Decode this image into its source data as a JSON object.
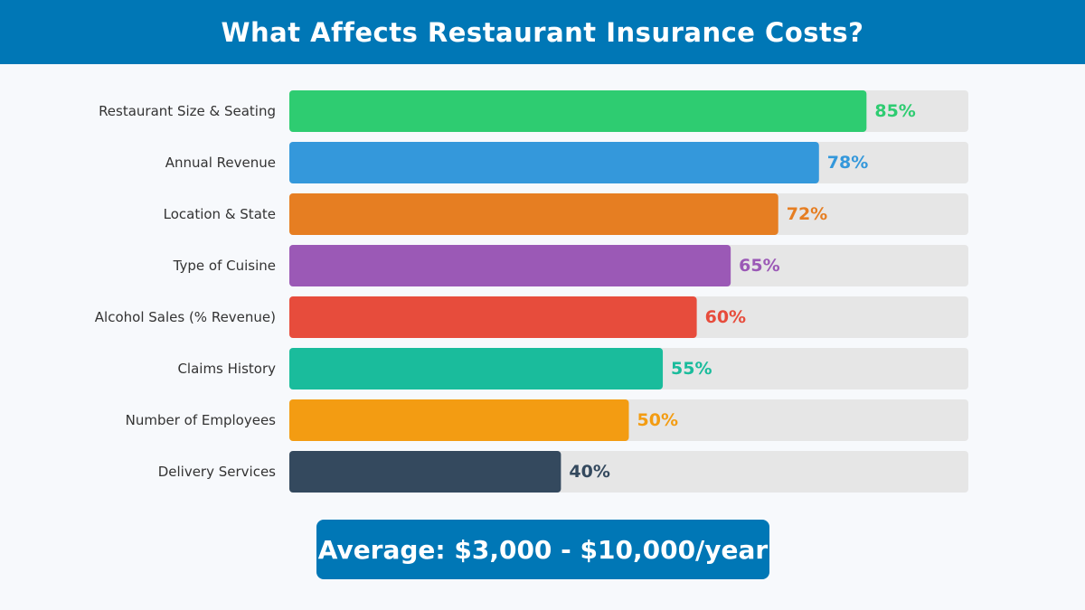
{
  "header": {
    "title": "What Affects Restaurant Insurance Costs?"
  },
  "chart_data": {
    "type": "bar",
    "orientation": "horizontal",
    "title": "What Affects Restaurant Insurance Costs?",
    "xlim": [
      0,
      100
    ],
    "categories": [
      "Restaurant Size & Seating",
      "Annual Revenue",
      "Location & State",
      "Type of Cuisine",
      "Alcohol Sales (% Revenue)",
      "Claims History",
      "Number of Employees",
      "Delivery Services"
    ],
    "values": [
      85,
      78,
      72,
      65,
      60,
      55,
      50,
      40
    ],
    "value_labels": [
      "85%",
      "78%",
      "72%",
      "65%",
      "60%",
      "55%",
      "50%",
      "40%"
    ],
    "colors": [
      "#2ecc71",
      "#3498db",
      "#e67e22",
      "#9b59b6",
      "#e74c3c",
      "#1abc9c",
      "#f39c12",
      "#34495e"
    ],
    "track_color": "#e6e6e6"
  },
  "footer": {
    "average_label": "Average: $3,000 - $10,000/year"
  }
}
